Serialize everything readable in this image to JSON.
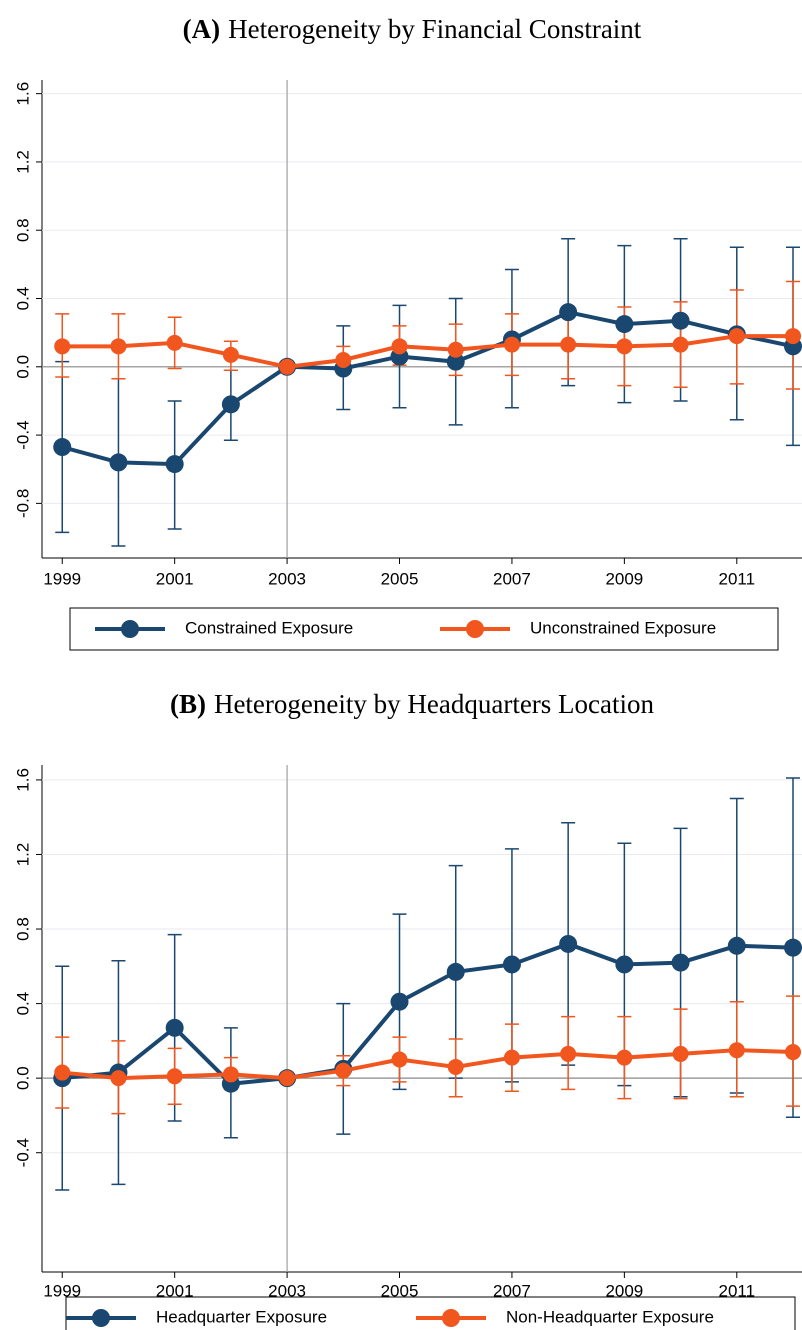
{
  "chart_data": [
    {
      "type": "line",
      "panel": "(A)",
      "title": "Heterogeneity by Financial Constraint",
      "x": [
        1999,
        2000,
        2001,
        2002,
        2003,
        2004,
        2005,
        2006,
        2007,
        2008,
        2009,
        2010,
        2011,
        2012
      ],
      "xlim": [
        1998.64,
        2012.16
      ],
      "xticks": [
        1999,
        2001,
        2003,
        2005,
        2007,
        2009,
        2011
      ],
      "ylim": [
        -1.12,
        1.68
      ],
      "yticks": [
        -0.8,
        -0.4,
        {
          "value": 0,
          "label": "0.0"
        },
        0.4,
        0.8,
        1.2,
        1.6
      ],
      "grid": true,
      "vline": 2003,
      "hline": 0,
      "legend": "bottom",
      "series": [
        {
          "name": "Constrained Exposure",
          "color": "#1a476f",
          "values": [
            -0.47,
            -0.56,
            -0.57,
            -0.22,
            0,
            -0.01,
            0.06,
            0.03,
            0.16,
            0.32,
            0.25,
            0.27,
            0.19,
            0.12
          ],
          "lower": [
            -0.97,
            -1.05,
            -0.95,
            -0.43,
            0,
            -0.25,
            -0.24,
            -0.34,
            -0.24,
            -0.11,
            -0.21,
            -0.2,
            -0.31,
            -0.46
          ],
          "upper": [
            0.03,
            -0.07,
            -0.2,
            -0.02,
            0,
            0.24,
            0.36,
            0.4,
            0.57,
            0.75,
            0.71,
            0.75,
            0.7,
            0.7
          ]
        },
        {
          "name": "Unconstrained Exposure",
          "color": "#f0561e",
          "values": [
            0.12,
            0.12,
            0.14,
            0.07,
            0,
            0.04,
            0.12,
            0.1,
            0.13,
            0.13,
            0.12,
            0.13,
            0.18,
            0.18
          ],
          "lower": [
            -0.06,
            -0.07,
            -0.01,
            -0.02,
            0,
            -0.04,
            0.01,
            -0.05,
            -0.05,
            -0.07,
            -0.11,
            -0.12,
            -0.1,
            -0.13
          ],
          "upper": [
            0.31,
            0.31,
            0.29,
            0.15,
            0,
            0.12,
            0.24,
            0.25,
            0.31,
            0.33,
            0.35,
            0.38,
            0.45,
            0.5
          ]
        }
      ]
    },
    {
      "type": "line",
      "panel": "(B)",
      "title": "Heterogeneity by Headquarters Location",
      "x": [
        1999,
        2000,
        2001,
        2002,
        2003,
        2004,
        2005,
        2006,
        2007,
        2008,
        2009,
        2010,
        2011,
        2012
      ],
      "xlim": [
        1998.64,
        2012.16
      ],
      "xticks": [
        1999,
        2001,
        2003,
        2005,
        2007,
        2009,
        2011
      ],
      "ylim": [
        -1.04,
        1.68
      ],
      "yticks": [
        -0.4,
        {
          "value": 0,
          "label": "0.0"
        },
        0.4,
        0.8,
        1.2,
        1.6
      ],
      "grid": true,
      "vline": 2003,
      "hline": 0,
      "legend": "bottom",
      "series": [
        {
          "name": "Headquarter Exposure",
          "color": "#1a476f",
          "values": [
            0,
            0.03,
            0.27,
            -0.03,
            0,
            0.05,
            0.41,
            0.57,
            0.61,
            0.72,
            0.61,
            0.62,
            0.71,
            0.7
          ],
          "lower": [
            -0.6,
            -0.57,
            -0.23,
            -0.32,
            0,
            -0.3,
            -0.06,
            0,
            -0.02,
            0.07,
            -0.04,
            -0.1,
            -0.08,
            -0.21
          ],
          "upper": [
            0.6,
            0.63,
            0.77,
            0.27,
            0,
            0.4,
            0.88,
            1.14,
            1.23,
            1.37,
            1.26,
            1.34,
            1.5,
            1.61
          ]
        },
        {
          "name": "Non-Headquarter Exposure",
          "color": "#f0561e",
          "values": [
            0.03,
            0,
            0.01,
            0.02,
            0,
            0.04,
            0.1,
            0.06,
            0.11,
            0.13,
            0.11,
            0.13,
            0.15,
            0.14
          ],
          "lower": [
            -0.16,
            -0.19,
            -0.14,
            -0.06,
            0,
            -0.04,
            -0.02,
            -0.1,
            -0.07,
            -0.06,
            -0.11,
            -0.11,
            -0.1,
            -0.15
          ],
          "upper": [
            0.22,
            0.2,
            0.16,
            0.11,
            0,
            0.12,
            0.22,
            0.21,
            0.29,
            0.33,
            0.33,
            0.37,
            0.41,
            0.44
          ]
        }
      ]
    }
  ]
}
